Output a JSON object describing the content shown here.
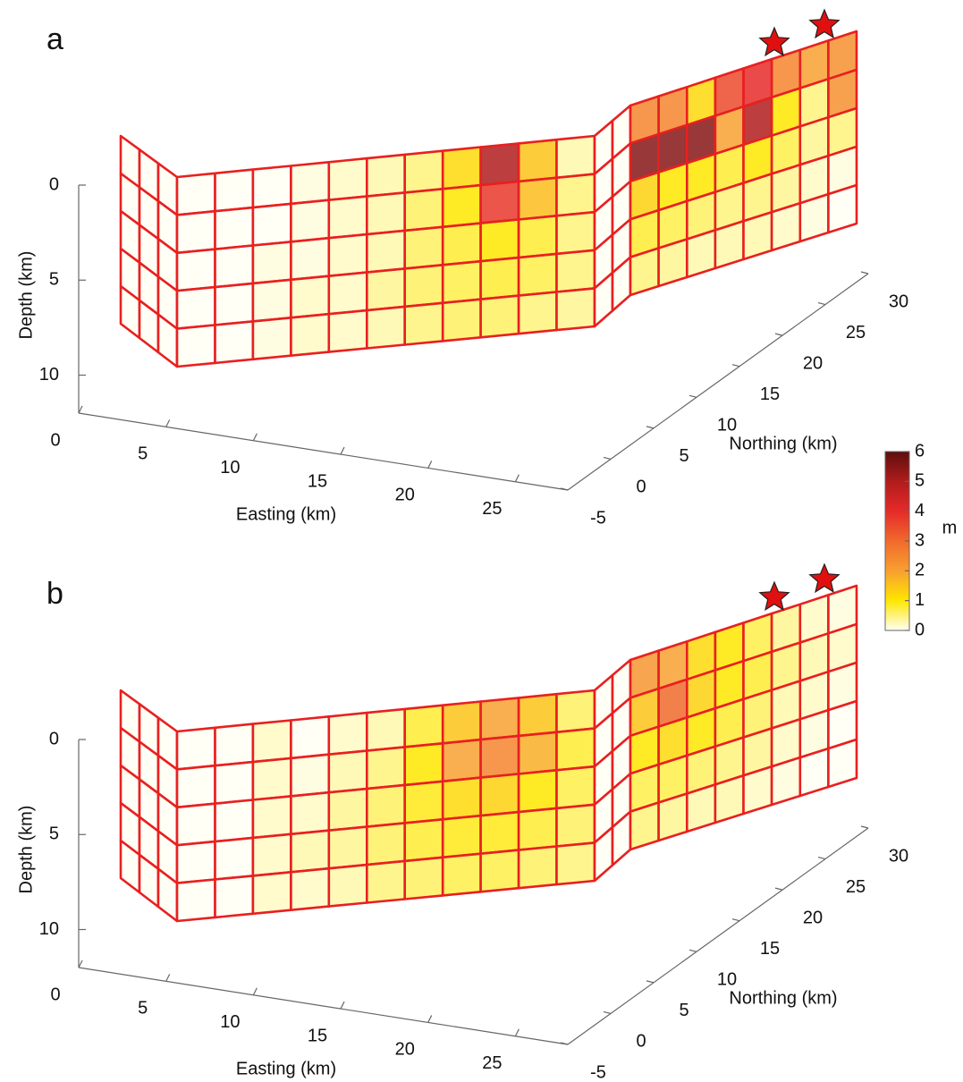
{
  "chart_data": [
    {
      "type": "fault-slip-3d",
      "panel_label": "a",
      "zlabel": "Depth (km)",
      "xlabel": "Easting (km)",
      "ylabel": "Northing (km)",
      "zlim": [
        0,
        12
      ],
      "zticks": [
        0,
        5,
        10
      ],
      "xlim": [
        0,
        28
      ],
      "xticks": [
        0,
        5,
        10,
        15,
        20,
        25
      ],
      "ylim": [
        -5,
        30
      ],
      "yticks": [
        -5,
        0,
        5,
        10,
        15,
        20,
        25,
        30
      ],
      "segments": [
        {
          "slip": [
            [
              0,
              0,
              0
            ],
            [
              0,
              0,
              0
            ],
            [
              0,
              0,
              0
            ],
            [
              0,
              0,
              0
            ],
            [
              0,
              0,
              0
            ]
          ]
        },
        {
          "slip": [
            [
              0,
              0,
              0,
              0.1,
              0.2,
              0.3,
              0.5,
              1.2,
              5,
              1.5,
              0.3
            ],
            [
              0,
              0,
              0,
              0.1,
              0.2,
              0.3,
              0.6,
              1,
              3.8,
              1.6,
              0.5
            ],
            [
              0,
              0,
              0.1,
              0.1,
              0.2,
              0.3,
              0.6,
              0.8,
              1,
              0.8,
              0.5
            ],
            [
              0,
              0,
              0.1,
              0.2,
              0.2,
              0.4,
              0.6,
              0.7,
              0.8,
              0.7,
              0.5
            ],
            [
              0,
              0,
              0.1,
              0.2,
              0.2,
              0.3,
              0.5,
              0.6,
              0.6,
              0.5,
              0.4
            ]
          ]
        },
        {
          "slip": [
            [
              0,
              0
            ],
            [
              0,
              0
            ],
            [
              0,
              0
            ],
            [
              0,
              0
            ],
            [
              0,
              0
            ]
          ]
        },
        {
          "slip": [
            [
              2.5,
              2.5,
              1.2,
              3.5,
              4,
              2.5,
              2,
              2.3
            ],
            [
              5.5,
              5.5,
              5.5,
              2,
              5,
              1,
              0.5,
              2.3
            ],
            [
              1.3,
              1,
              1,
              0.8,
              1,
              0.7,
              0.4,
              0.5
            ],
            [
              0.8,
              0.7,
              0.6,
              0.5,
              0.5,
              0.4,
              0.2,
              0.1
            ],
            [
              0.5,
              0.4,
              0.3,
              0.3,
              0.3,
              0.2,
              0.1,
              0
            ]
          ]
        }
      ]
    },
    {
      "type": "fault-slip-3d",
      "panel_label": "b",
      "zlabel": "Depth (km)",
      "xlabel": "Easting (km)",
      "ylabel": "Northing (km)",
      "zlim": [
        0,
        12
      ],
      "zticks": [
        0,
        5,
        10
      ],
      "xlim": [
        0,
        28
      ],
      "xticks": [
        0,
        5,
        10,
        15,
        20,
        25
      ],
      "ylim": [
        -5,
        30
      ],
      "yticks": [
        -5,
        0,
        5,
        10,
        15,
        20,
        25,
        30
      ],
      "segments": [
        {
          "slip": [
            [
              0,
              0,
              0
            ],
            [
              0,
              0,
              0
            ],
            [
              0,
              0,
              0
            ],
            [
              0,
              0,
              0
            ],
            [
              0,
              0,
              0
            ]
          ]
        },
        {
          "slip": [
            [
              0,
              0,
              0.2,
              0,
              0.2,
              0.3,
              0.8,
              1.5,
              2,
              1.5,
              0.6
            ],
            [
              0,
              0,
              0.2,
              0.1,
              0.3,
              0.5,
              1,
              2,
              2.5,
              1.8,
              0.8
            ],
            [
              0,
              0,
              0.2,
              0.2,
              0.4,
              0.6,
              0.9,
              1.2,
              1.3,
              1,
              0.7
            ],
            [
              0,
              0,
              0.2,
              0.3,
              0.4,
              0.6,
              0.8,
              0.9,
              0.9,
              0.8,
              0.6
            ],
            [
              0,
              0,
              0.2,
              0.2,
              0.3,
              0.5,
              0.6,
              0.7,
              0.7,
              0.6,
              0.5
            ]
          ]
        },
        {
          "slip": [
            [
              0,
              0
            ],
            [
              0,
              0
            ],
            [
              0,
              0
            ],
            [
              0,
              0
            ],
            [
              0,
              0
            ]
          ]
        },
        {
          "slip": [
            [
              2.2,
              2,
              1.2,
              1,
              0.7,
              0.4,
              0.2,
              0.1
            ],
            [
              1.5,
              3,
              1.3,
              1,
              0.8,
              0.5,
              0.3,
              0.2
            ],
            [
              1,
              1.2,
              1,
              0.8,
              0.6,
              0.3,
              0.2,
              0.1
            ],
            [
              0.7,
              0.7,
              0.6,
              0.5,
              0.4,
              0.2,
              0.1,
              0
            ],
            [
              0.5,
              0.4,
              0.3,
              0.3,
              0.2,
              0.1,
              0,
              0
            ]
          ]
        }
      ]
    }
  ],
  "colorbar": {
    "label": "m",
    "lim": [
      0,
      6
    ],
    "ticks": [
      0,
      1,
      2,
      3,
      4,
      5,
      6
    ]
  }
}
